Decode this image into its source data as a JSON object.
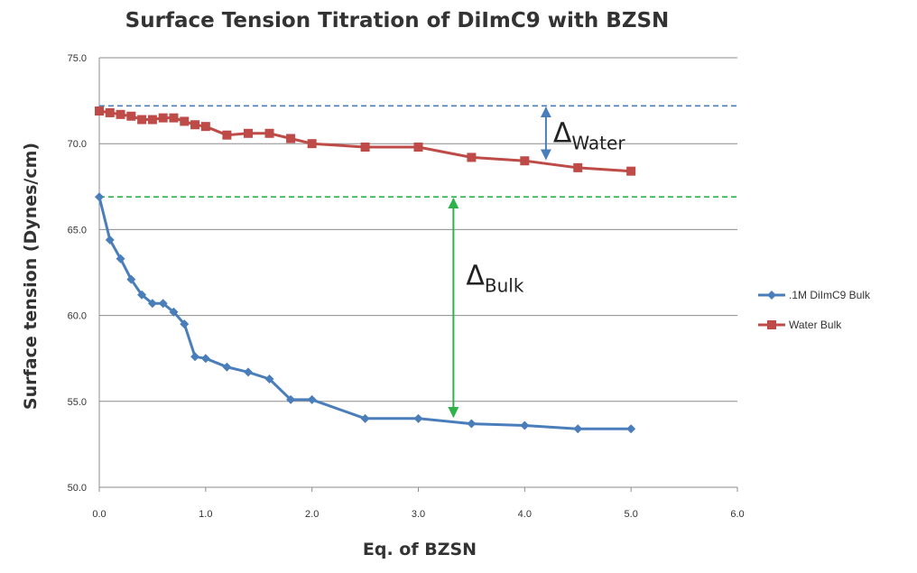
{
  "chart_data": {
    "type": "line",
    "title": "Surface Tension Titration of DiImC9 with BZSN",
    "xlabel": "Eq. of BZSN",
    "ylabel": "Surface tension (Dynes/cm)",
    "xlim": [
      0,
      6
    ],
    "ylim": [
      50,
      75
    ],
    "x_ticks": [
      0,
      1,
      2,
      3,
      4,
      5,
      6
    ],
    "x_tick_labels": [
      "0.0",
      "1.0",
      "2.0",
      "3.0",
      "4.0",
      "5.0",
      "6.0"
    ],
    "y_ticks": [
      50,
      55,
      60,
      65,
      70,
      75
    ],
    "y_tick_labels": [
      "50.0",
      "55.0",
      "60.0",
      "65.0",
      "70.0",
      "75.0"
    ],
    "grid": "horizontal",
    "legend_position": "right",
    "series": [
      {
        "name": ".1M DiImC9 Bulk",
        "color": "#4a7ebb",
        "marker": "diamond",
        "x": [
          0,
          0.1,
          0.2,
          0.3,
          0.4,
          0.5,
          0.6,
          0.7,
          0.8,
          0.9,
          1.0,
          1.2,
          1.4,
          1.6,
          1.8,
          2.0,
          2.5,
          3.0,
          3.5,
          4.0,
          4.5,
          5.0
        ],
        "y": [
          66.9,
          64.4,
          63.3,
          62.1,
          61.2,
          60.7,
          60.7,
          60.2,
          59.5,
          57.6,
          57.5,
          57.0,
          56.7,
          56.3,
          55.1,
          55.1,
          54.0,
          54.0,
          53.7,
          53.6,
          53.4,
          53.4
        ]
      },
      {
        "name": "Water Bulk",
        "color": "#be4b48",
        "marker": "square",
        "x": [
          0,
          0.1,
          0.2,
          0.3,
          0.4,
          0.5,
          0.6,
          0.7,
          0.8,
          0.9,
          1.0,
          1.2,
          1.4,
          1.6,
          1.8,
          2.0,
          2.5,
          3.0,
          3.5,
          4.0,
          4.5,
          5.0
        ],
        "y": [
          71.9,
          71.8,
          71.7,
          71.6,
          71.4,
          71.4,
          71.5,
          71.5,
          71.3,
          71.1,
          71.0,
          70.5,
          70.6,
          70.6,
          70.3,
          70.0,
          69.8,
          69.8,
          69.2,
          69.0,
          68.6,
          68.4
        ]
      }
    ],
    "annotations": {
      "water_ref_line": {
        "y": 72.2,
        "color": "#4a7ebb"
      },
      "bulk_ref_line": {
        "y": 66.9,
        "color": "#2db34a"
      },
      "delta_water": {
        "symbol": "Δ",
        "subscript": "Water",
        "x": 4.2,
        "y_from": 72.2,
        "y_to": 69.0,
        "color": "#4a7ebb"
      },
      "delta_bulk": {
        "symbol": "Δ",
        "subscript": "Bulk",
        "x": 3.33,
        "y_from": 66.9,
        "y_to": 54.0,
        "color": "#2db34a"
      }
    }
  }
}
